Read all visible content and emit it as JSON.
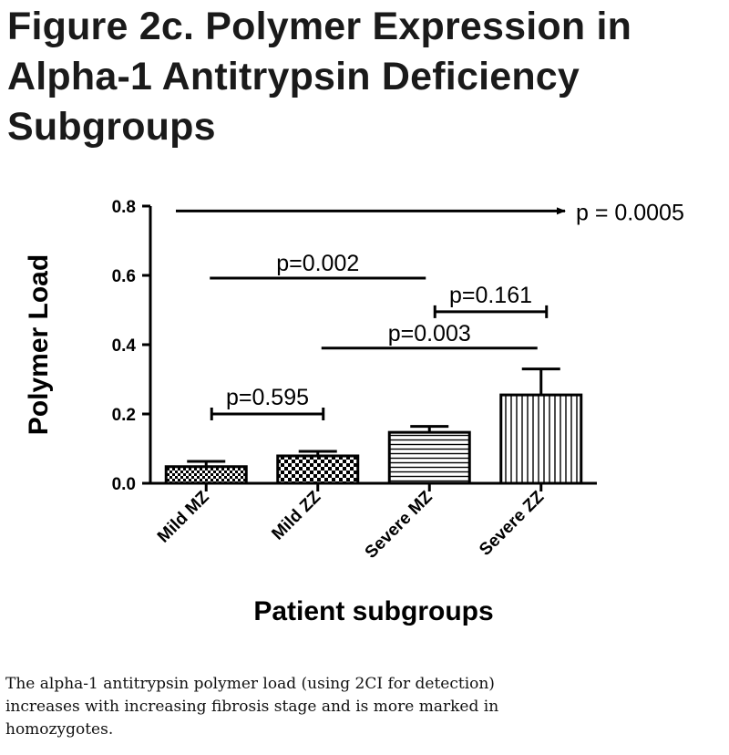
{
  "figure": {
    "title_lines": [
      "Figure 2c.  Polymer Expression in",
      "Alpha-1 Antitrypsin Deficiency",
      "Subgroups"
    ],
    "caption_lines": [
      "The alpha-1 antitrypsin polymer load (using 2CI for detection)",
      "increases with increasing fibrosis stage and is more marked in",
      "homozygotes."
    ]
  },
  "chart_data": {
    "type": "bar",
    "title": "Figure 2c.  Polymer Expression in Alpha-1 Antitrypsin Deficiency Subgroups",
    "xlabel": "Patient subgroups",
    "ylabel": "Polymer Load",
    "categories": [
      "Mild MZ",
      "Mild ZZ",
      "Severe MZ",
      "Severe ZZ"
    ],
    "values": [
      0.048,
      0.079,
      0.147,
      0.255
    ],
    "error_upper": [
      0.063,
      0.092,
      0.164,
      0.33
    ],
    "patterns": [
      "checker-fine",
      "checker-coarse",
      "horizontal-lines",
      "vertical-lines"
    ],
    "ylim": [
      0,
      0.8
    ],
    "yticks": [
      "0.0",
      "0.2",
      "0.4",
      "0.6",
      "0.8"
    ],
    "grid": false,
    "annotations": [
      {
        "text": "p = 0.0005",
        "type": "arrow",
        "y": 0.786,
        "from": -0.5,
        "to": 3.5
      },
      {
        "text": "p=0.002",
        "type": "line",
        "y": 0.592,
        "from": 0,
        "to": 2
      },
      {
        "text": "p=0.161",
        "type": "bracket",
        "y": 0.495,
        "from": 2,
        "to": 3
      },
      {
        "text": "p=0.003",
        "type": "line",
        "y": 0.39,
        "from": 1,
        "to": 3
      },
      {
        "text": "p=0.595",
        "type": "bracket",
        "y": 0.2,
        "from": 0,
        "to": 1
      }
    ],
    "colors": {
      "bar_stroke": "#000000",
      "bar_fill": "#ffffff",
      "text": "#000000"
    }
  }
}
